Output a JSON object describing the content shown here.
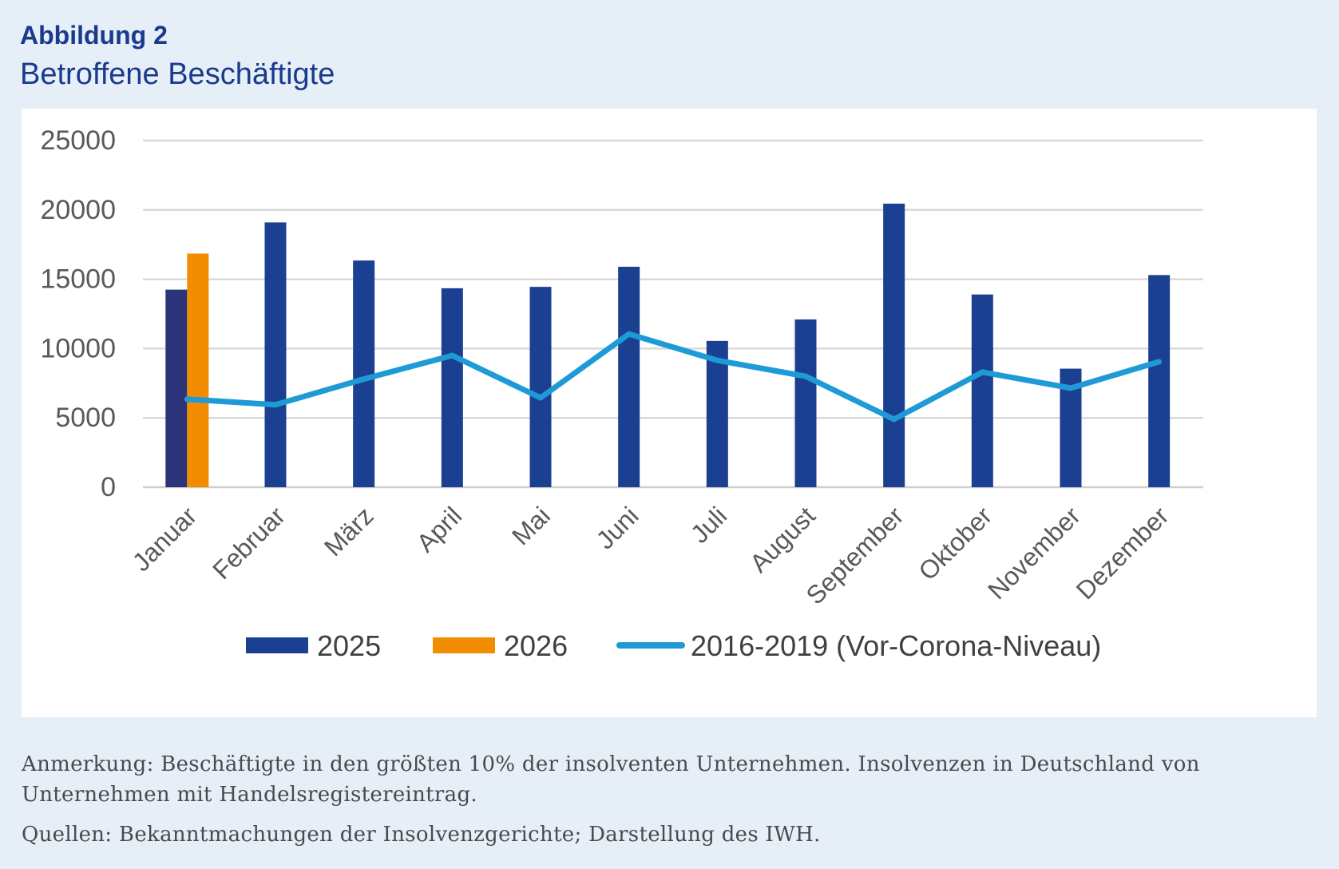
{
  "figure": {
    "label": "Abbildung 2",
    "title": "Betroffene Beschäftigte"
  },
  "chart_data": {
    "type": "bar",
    "categories": [
      "Januar",
      "Februar",
      "März",
      "April",
      "Mai",
      "Juni",
      "Juli",
      "August",
      "September",
      "Oktober",
      "November",
      "Dezember"
    ],
    "ylim": [
      0,
      25000
    ],
    "yticks": [
      0,
      5000,
      10000,
      15000,
      20000,
      25000
    ],
    "grid": true,
    "legend_position": "bottom",
    "series": [
      {
        "name": "2025",
        "kind": "bar",
        "color": "#1b3f91",
        "color_first": "#2c3479",
        "values": [
          14250,
          19100,
          16350,
          14350,
          14450,
          15900,
          10550,
          12100,
          20450,
          13900,
          8550,
          15300
        ]
      },
      {
        "name": "2026",
        "kind": "bar",
        "color": "#f28c00",
        "values": [
          16850,
          null,
          null,
          null,
          null,
          null,
          null,
          null,
          null,
          null,
          null,
          null
        ]
      },
      {
        "name": "2016-2019 (Vor-Corona-Niveau)",
        "kind": "line",
        "color": "#1e9ad6",
        "values": [
          6350,
          5950,
          7800,
          9500,
          6450,
          11050,
          9150,
          8000,
          4900,
          8300,
          7150,
          9050
        ]
      }
    ]
  },
  "notes": {
    "annotation": "Anmerkung: Beschäftigte in den größten 10% der insolventen Unternehmen. Insolvenzen in Deutschland von Unternehmen mit Handelsregistereintrag.",
    "sources": "Quellen: Bekanntmachungen der Insolvenzgerichte; Darstellung des IWH."
  }
}
